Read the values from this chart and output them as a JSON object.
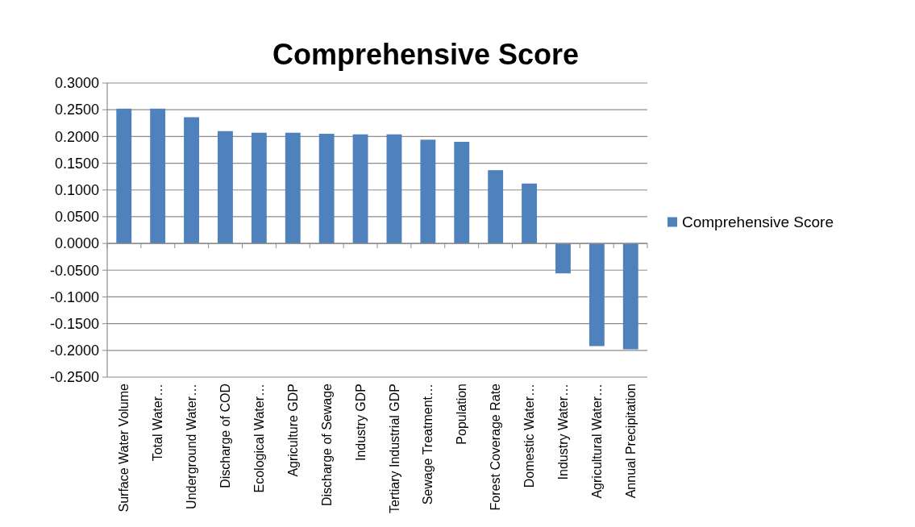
{
  "chart_data": {
    "type": "bar",
    "title": "Comprehensive Score",
    "categories": [
      "Surface Water Volume",
      "Total Water…",
      "Underground Water…",
      "Discharge of COD",
      "Ecological Water…",
      "Agriculture GDP",
      "Discharge of Sewage",
      "Industry GDP",
      "Tertiary Industrial GDP",
      "Sewage Treatment…",
      "Population",
      "Forest Coverage Rate",
      "Domestic Water…",
      "Industry Water…",
      "Agricultural Water…",
      "Annual Precipitation"
    ],
    "series": [
      {
        "name": "Comprehensive Score",
        "color": "#4f81bd",
        "values": [
          0.252,
          0.252,
          0.236,
          0.21,
          0.207,
          0.207,
          0.205,
          0.204,
          0.204,
          0.194,
          0.19,
          0.137,
          0.112,
          -0.056,
          -0.192,
          -0.198
        ]
      }
    ],
    "ylim": [
      -0.25,
      0.3
    ],
    "yticks": [
      {
        "value": -0.25,
        "label": "-0.2500"
      },
      {
        "value": -0.2,
        "label": "-0.2000"
      },
      {
        "value": -0.15,
        "label": "-0.1500"
      },
      {
        "value": -0.1,
        "label": "-0.1000"
      },
      {
        "value": -0.05,
        "label": "-0.0500"
      },
      {
        "value": 0,
        "label": "0.0000"
      },
      {
        "value": 0.05,
        "label": "0.0500"
      },
      {
        "value": 0.1,
        "label": "0.1000"
      },
      {
        "value": 0.15,
        "label": "0.1500"
      },
      {
        "value": 0.2,
        "label": "0.2000"
      },
      {
        "value": 0.25,
        "label": "0.2500"
      },
      {
        "value": 0.3,
        "label": "0.3000"
      }
    ],
    "grid": "y",
    "legend": "right"
  }
}
